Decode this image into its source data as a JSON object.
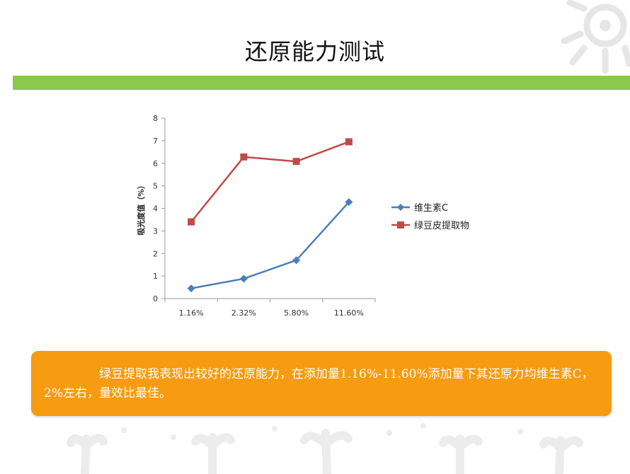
{
  "slide": {
    "title": "还原能力测试",
    "summary": "绿豆提取我表现出较好的还原能力，在添加量1.16%-11.60%添加量下其还原力均维生素C，2%左右，量效比最佳。"
  },
  "colors": {
    "accent_bar": "#8cc84b",
    "callout_bg": "#f79b10",
    "series_vc": "#4a7ebb",
    "series_extract": "#be4b48"
  },
  "chart_data": {
    "type": "line",
    "title": "",
    "xlabel": "",
    "ylabel": "吸光度值（%）",
    "categories": [
      "1.16%",
      "2.32%",
      "5.80%",
      "11.60%"
    ],
    "ylim": [
      0,
      8
    ],
    "yticks": [
      0,
      1,
      2,
      3,
      4,
      5,
      6,
      7,
      8
    ],
    "grid": false,
    "legend": "right",
    "series": [
      {
        "name": "维生素C",
        "values": [
          0.45,
          0.88,
          1.7,
          4.28
        ],
        "marker": "diamond",
        "color": "#4a7ebb"
      },
      {
        "name": "绿豆皮提取物",
        "values": [
          3.4,
          6.28,
          6.08,
          6.95
        ],
        "marker": "square",
        "color": "#be4b48"
      }
    ]
  }
}
